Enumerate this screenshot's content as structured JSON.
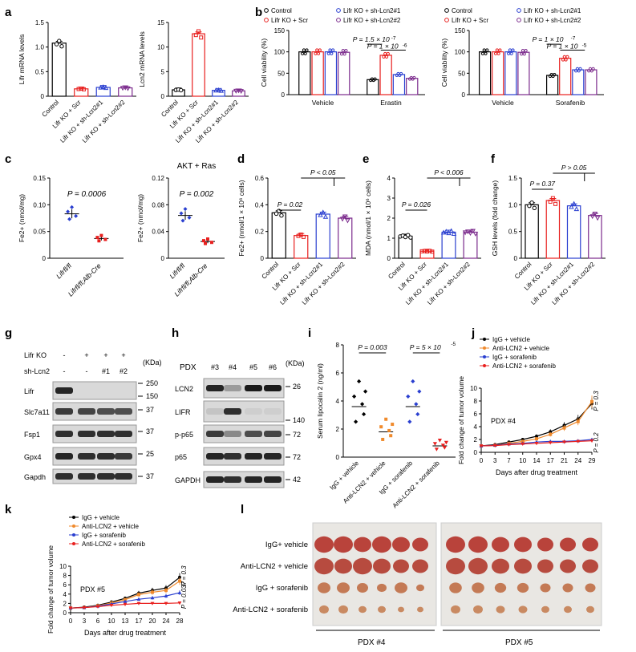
{
  "colors": {
    "control": "#000000",
    "scr": "#e8201f",
    "sh1": "#2a3fd0",
    "sh2": "#7b2a8c",
    "orange": "#f08a2c",
    "lightred": "#e8201f"
  },
  "panel_letters": [
    "a",
    "b",
    "c",
    "d",
    "e",
    "f",
    "g",
    "h",
    "i",
    "j",
    "k",
    "l"
  ],
  "group_labels": [
    "Control",
    "Lifr KO + Scr",
    "Lifr KO + sh-Lcn2#1",
    "Lifr KO + sh-Lcn2#2"
  ],
  "chart_data": [
    {
      "id": "a1",
      "type": "bar",
      "ylabel": "Lifr mRNA levels",
      "ylim": [
        0,
        1.5
      ],
      "yticks": [
        "0",
        "0.5",
        "1.0",
        "1.5"
      ],
      "categories": [
        "Control",
        "Lifr KO + Scr",
        "Lifr KO + sh-Lcn2#1",
        "Lifr KO + sh-Lcn2#2"
      ],
      "values": [
        1.08,
        0.15,
        0.18,
        0.17
      ]
    },
    {
      "id": "a2",
      "type": "bar",
      "ylabel": "Lcn2 mRNA levels",
      "ylim": [
        0,
        15
      ],
      "yticks": [
        "0",
        "5",
        "10",
        "15"
      ],
      "categories": [
        "Control",
        "Lifr KO + Scr",
        "Lifr KO + sh-Lcn2#1",
        "Lifr KO + sh-Lcn2#2"
      ],
      "values": [
        1.3,
        12.7,
        1.2,
        1.1
      ]
    },
    {
      "id": "b1",
      "type": "bar",
      "ylabel": "Cell viability (%)",
      "ylim": [
        0,
        150
      ],
      "yticks": [
        "0",
        "50",
        "100",
        "150"
      ],
      "groups": [
        "Vehicle",
        "Erastin"
      ],
      "legend": [
        "Control",
        "Lifr KO + Scr",
        "Lifr KO + sh-Lcn2#1",
        "Lifr KO + sh-Lcn2#2"
      ],
      "series": [
        {
          "values": [
            100,
            35
          ]
        },
        {
          "values": [
            100,
            92
          ]
        },
        {
          "values": [
            100,
            47
          ]
        },
        {
          "values": [
            99,
            38
          ]
        }
      ],
      "annotations": [
        "P = 1.5 × 10",
        "-7",
        "P = 1 × 10",
        "-6"
      ]
    },
    {
      "id": "b2",
      "type": "bar",
      "ylabel": "Cell viability (%)",
      "ylim": [
        0,
        150
      ],
      "yticks": [
        "0",
        "50",
        "100",
        "150"
      ],
      "groups": [
        "Vehicle",
        "Sorafenib"
      ],
      "legend": [
        "Control",
        "Lifr KO + Scr",
        "Lifr KO + sh-Lcn2#1",
        "Lifr KO + sh-Lcn2#2"
      ],
      "series": [
        {
          "values": [
            100,
            45
          ]
        },
        {
          "values": [
            100,
            85
          ]
        },
        {
          "values": [
            100,
            58
          ]
        },
        {
          "values": [
            99,
            58
          ]
        }
      ],
      "annotations": [
        "P = 1 × 10",
        "-7",
        "P = 1 × 10",
        "-5"
      ]
    },
    {
      "id": "c1",
      "type": "scatter",
      "ylabel": "Fe2+ (nmol/mg)",
      "ylim": [
        0,
        0.15
      ],
      "yticks": [
        "0",
        "0.05",
        "0.10",
        "0.15"
      ],
      "categories": [
        "Lifrfl/fl",
        "Lifrfl/fl;Alb-Cre"
      ],
      "means": [
        0.083,
        0.037
      ],
      "annotation": "P = 0.0006"
    },
    {
      "id": "c2",
      "type": "scatter",
      "title": "AKT + Ras",
      "ylabel": "Fe2+ (nmol/mg)",
      "ylim": [
        0,
        0.12
      ],
      "yticks": [
        "0",
        "0.04",
        "0.08",
        "0.12"
      ],
      "categories": [
        "Lifrfl/fl",
        "Lifrfl/fl;Alb-Cre"
      ],
      "means": [
        0.064,
        0.025
      ],
      "annotation": "P = 0.002"
    },
    {
      "id": "d",
      "type": "bar",
      "ylabel": "Fe2+ (nmol/1 × 10⁶ cells)",
      "ylim": [
        0,
        0.6
      ],
      "yticks": [
        "0",
        "0.2",
        "0.4",
        "0.6"
      ],
      "categories": [
        "Control",
        "Lifr KO + Scr",
        "Lifr KO + sh-Lcn2#1",
        "Lifr KO + sh-Lcn2#2"
      ],
      "values": [
        0.34,
        0.17,
        0.33,
        0.3
      ],
      "annotations": [
        "P = 0.02",
        "P < 0.05"
      ]
    },
    {
      "id": "e",
      "type": "bar",
      "ylabel": "MDA (nmol/1 × 10⁶ cells)",
      "ylim": [
        0,
        4
      ],
      "yticks": [
        "0",
        "1",
        "2",
        "3",
        "4"
      ],
      "categories": [
        "Control",
        "Lifr KO + Scr",
        "Lifr KO + sh-Lcn2#1",
        "Lifr KO + sh-Lcn2#2"
      ],
      "values": [
        1.1,
        0.35,
        1.3,
        1.3
      ],
      "annotations": [
        "P = 0.026",
        "P < 0.006"
      ]
    },
    {
      "id": "f",
      "type": "bar",
      "ylabel": "GSH levels (fold change)",
      "ylim": [
        0,
        1.5
      ],
      "yticks": [
        "0",
        "0.5",
        "1.0",
        "1.5"
      ],
      "categories": [
        "Control",
        "Lifr KO + Scr",
        "Lifr KO + sh-Lcn2#1",
        "Lifr KO + sh-Lcn2#2"
      ],
      "values": [
        1.0,
        1.08,
        0.98,
        0.8
      ],
      "annotations": [
        "P = 0.37",
        "P > 0.05"
      ]
    },
    {
      "id": "i",
      "type": "scatter",
      "ylabel": "Serum lipocalin 2 (ng/ml)",
      "ylim": [
        0,
        8
      ],
      "yticks": [
        "0",
        "2",
        "4",
        "6",
        "8"
      ],
      "categories": [
        "IgG + vehicle",
        "Anti-LCN2 + vehicle",
        "IgG + sorafenib",
        "Anti-LCN2 + sorafenib"
      ],
      "means": [
        3.6,
        1.8,
        3.6,
        0.8
      ],
      "annotations": [
        "P = 0.003",
        "P = 5 × 10",
        "-5"
      ]
    },
    {
      "id": "j",
      "type": "line",
      "label": "PDX #4",
      "xlabel": "Days after drug treatment",
      "ylabel": "Fold change of tumor volume",
      "ylim": [
        0,
        10
      ],
      "yticks": [
        "0",
        "2",
        "4",
        "6",
        "8",
        "10"
      ],
      "x": [
        "0",
        "3",
        "7",
        "10",
        "14",
        "17",
        "21",
        "24",
        "29"
      ],
      "series": [
        {
          "name": "IgG + vehicle",
          "values": [
            1,
            1.2,
            1.6,
            2.0,
            2.5,
            3.2,
            4.2,
            5.2,
            7.6
          ]
        },
        {
          "name": "Anti-LCN2 + vehicle",
          "values": [
            1,
            1.1,
            1.4,
            1.7,
            2.1,
            2.8,
            3.8,
            4.8,
            7.9
          ]
        },
        {
          "name": "IgG + sorafenib",
          "values": [
            1,
            1.1,
            1.3,
            1.4,
            1.6,
            1.7,
            1.7,
            1.8,
            2.0
          ]
        },
        {
          "name": "Anti-LCN2 + sorafenib",
          "values": [
            1,
            1.05,
            1.2,
            1.3,
            1.4,
            1.5,
            1.6,
            1.7,
            1.8
          ]
        }
      ],
      "annotations": [
        "P = 0.3",
        "P = 0.2"
      ]
    },
    {
      "id": "k",
      "type": "line",
      "label": "PDX #5",
      "xlabel": "Days after drug treatment",
      "ylabel": "Fold change of tumor volume",
      "ylim": [
        0,
        10
      ],
      "yticks": [
        "0",
        "2",
        "4",
        "6",
        "8",
        "10"
      ],
      "x": [
        "0",
        "3",
        "6",
        "10",
        "13",
        "17",
        "20",
        "24",
        "28"
      ],
      "series": [
        {
          "name": "IgG + vehicle",
          "values": [
            1,
            1.2,
            1.6,
            2.3,
            3.1,
            4.2,
            4.8,
            5.3,
            7.6
          ]
        },
        {
          "name": "Anti-LCN2 + vehicle",
          "values": [
            1,
            1.1,
            1.5,
            2.1,
            2.8,
            3.9,
            4.4,
            4.8,
            6.8
          ]
        },
        {
          "name": "IgG + sorafenib",
          "values": [
            1,
            1.1,
            1.4,
            1.9,
            2.4,
            2.9,
            3.2,
            3.6,
            4.3
          ]
        },
        {
          "name": "Anti-LCN2 + sorafenib",
          "values": [
            1,
            1.1,
            1.3,
            1.6,
            1.8,
            2.0,
            2.0,
            2.0,
            2.1
          ]
        }
      ],
      "annotations": [
        "P = 0.3",
        "P = 0.037"
      ]
    }
  ],
  "blot_g": {
    "header_rows": [
      "Lifr KO",
      "sh-Lcn2"
    ],
    "lanes_row1": [
      "-",
      "+",
      "+",
      "+"
    ],
    "lanes_row2": [
      "-",
      "-",
      "#1",
      "#2"
    ],
    "unit": "(KDa)",
    "rows": [
      "Lifr",
      "Slc7a11",
      "Fsp1",
      "Gpx4",
      "Gapdh"
    ],
    "markers": [
      "250",
      "150",
      "37",
      "37",
      "25",
      "37"
    ]
  },
  "blot_h": {
    "pdx_label": "PDX",
    "lanes": [
      "#3",
      "#4",
      "#5",
      "#6"
    ],
    "unit": "(KDa)",
    "rows": [
      "LCN2",
      "LIFR",
      "p-p65",
      "p65",
      "GAPDH"
    ],
    "markers": [
      "26",
      "140",
      "72",
      "72",
      "42"
    ]
  },
  "panel_l": {
    "rows": [
      "IgG+ vehicle",
      "Anti-LCN2 + vehicle",
      "IgG + sorafenib",
      "Anti-LCN2 + sorafenib"
    ],
    "captions": [
      "PDX #4",
      "PDX #5"
    ]
  }
}
